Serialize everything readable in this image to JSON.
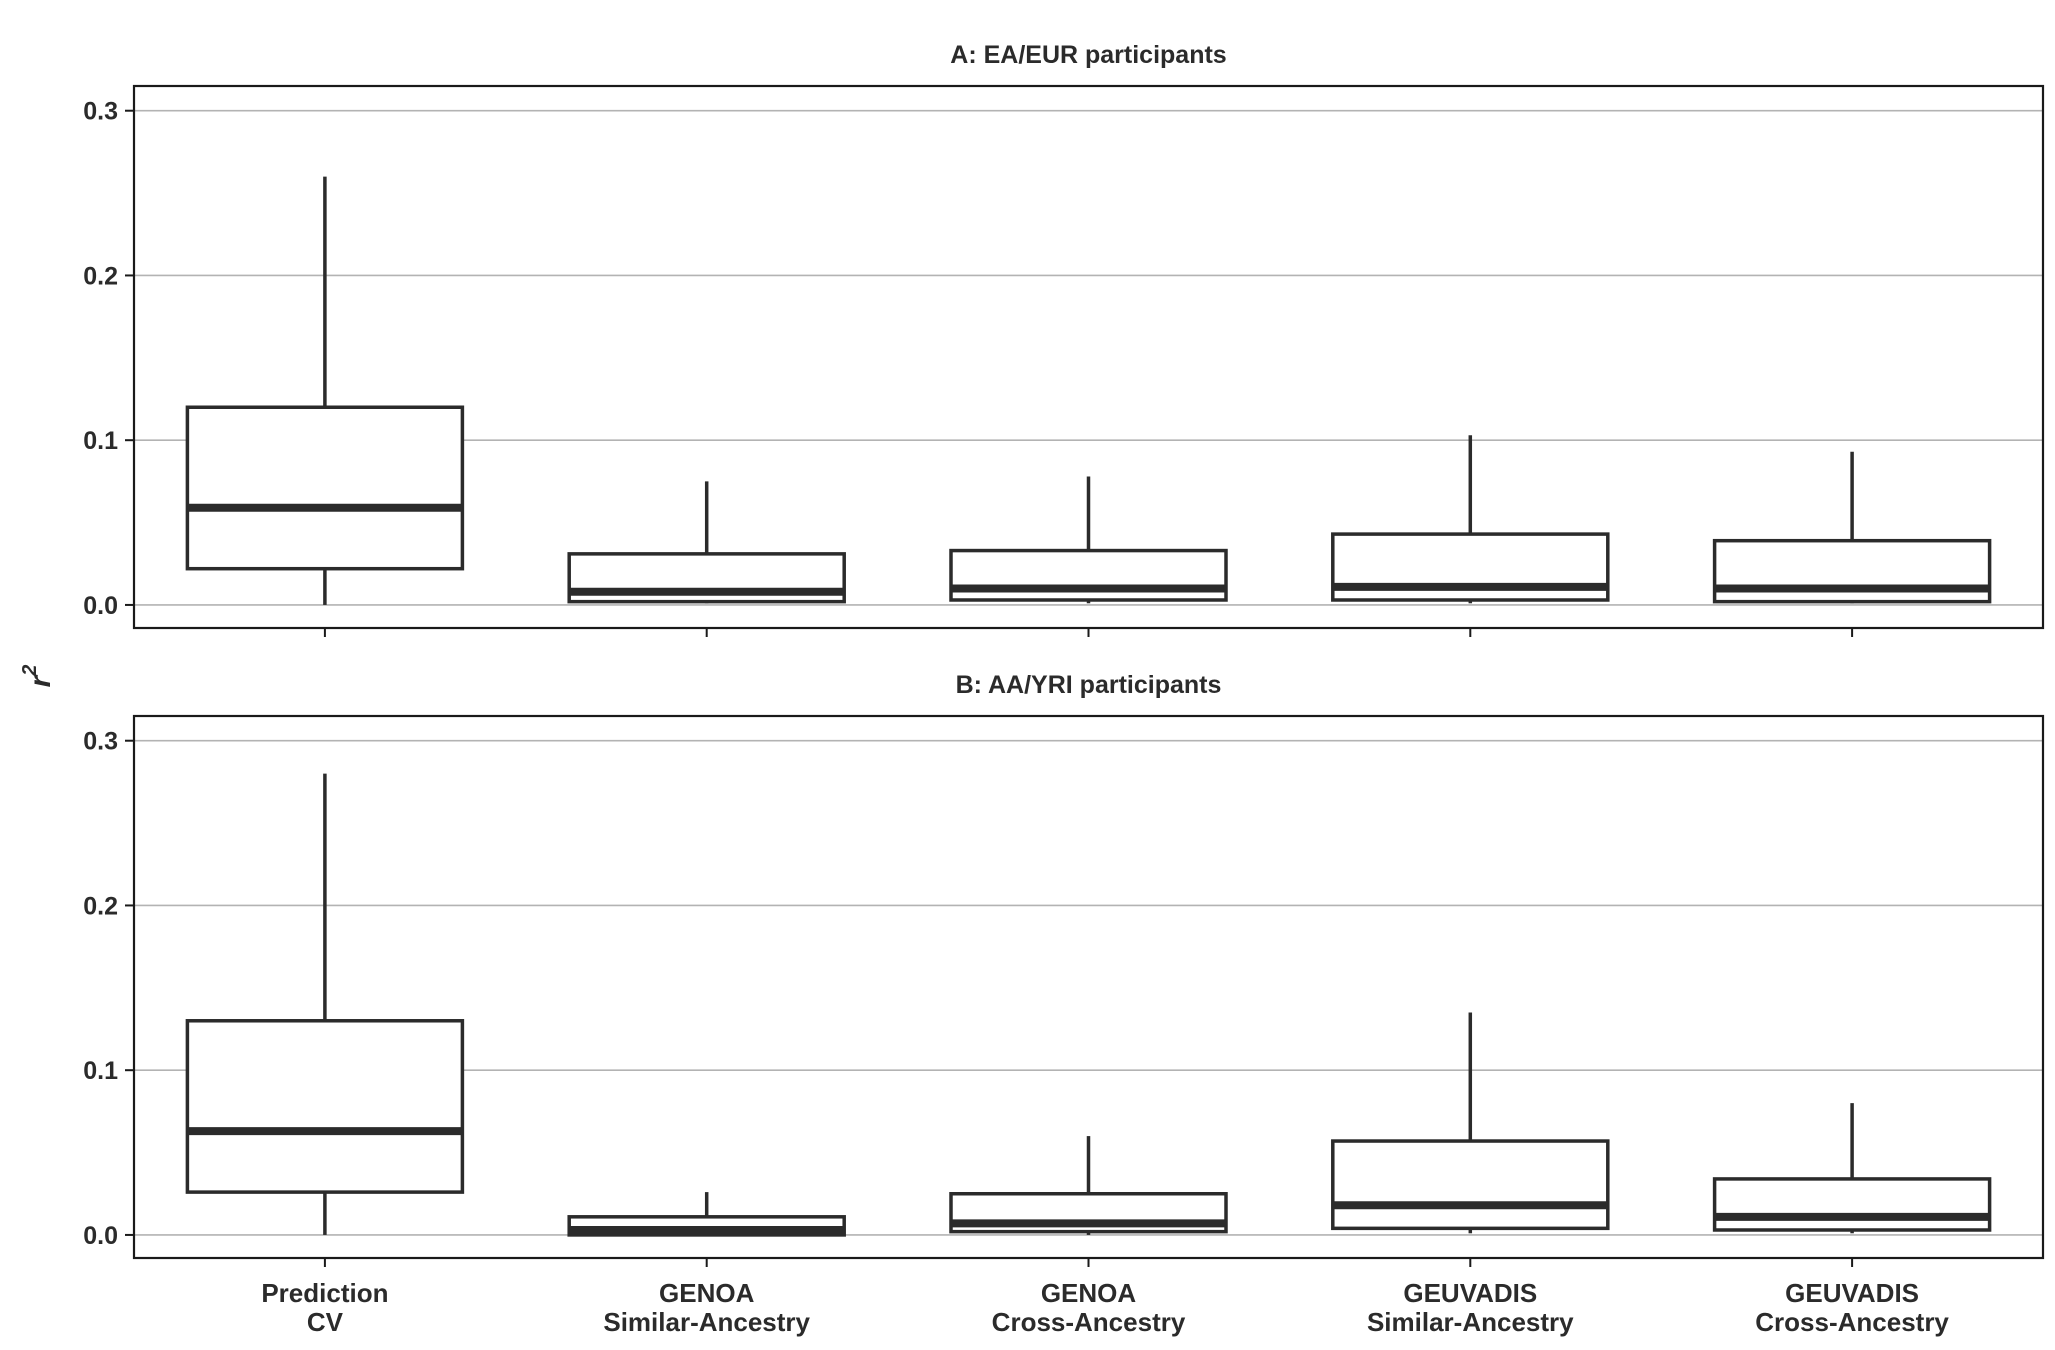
{
  "chart_data": {
    "type": "box",
    "ylabel": "r",
    "ylabel_superscript": "2",
    "ylim": [
      -0.014,
      0.315
    ],
    "yticks": [
      0.0,
      0.1,
      0.2,
      0.3
    ],
    "ytick_labels": [
      "0.0",
      "0.1",
      "0.2",
      "0.3"
    ],
    "grid": "horizontal",
    "categories": [
      {
        "line1": "Prediction",
        "line2": "CV"
      },
      {
        "line1": "GENOA",
        "line2": "Similar-Ancestry"
      },
      {
        "line1": "GENOA",
        "line2": "Cross-Ancestry"
      },
      {
        "line1": "GEUVADIS",
        "line2": "Similar-Ancestry"
      },
      {
        "line1": "GEUVADIS",
        "line2": "Cross-Ancestry"
      }
    ],
    "panels": [
      {
        "title": "A: EA/EUR participants",
        "boxes": [
          {
            "whisker_low": 0.0,
            "q1": 0.022,
            "median": 0.059,
            "q3": 0.12,
            "whisker_high": 0.26
          },
          {
            "whisker_low": 0.001,
            "q1": 0.002,
            "median": 0.008,
            "q3": 0.031,
            "whisker_high": 0.075
          },
          {
            "whisker_low": 0.001,
            "q1": 0.003,
            "median": 0.01,
            "q3": 0.033,
            "whisker_high": 0.078
          },
          {
            "whisker_low": 0.001,
            "q1": 0.003,
            "median": 0.011,
            "q3": 0.043,
            "whisker_high": 0.103
          },
          {
            "whisker_low": 0.001,
            "q1": 0.002,
            "median": 0.01,
            "q3": 0.039,
            "whisker_high": 0.093
          }
        ]
      },
      {
        "title": "B: AA/YRI participants",
        "boxes": [
          {
            "whisker_low": 0.0,
            "q1": 0.026,
            "median": 0.063,
            "q3": 0.13,
            "whisker_high": 0.28
          },
          {
            "whisker_low": 0.0,
            "q1": 0.0,
            "median": 0.003,
            "q3": 0.011,
            "whisker_high": 0.026
          },
          {
            "whisker_low": 0.0,
            "q1": 0.002,
            "median": 0.007,
            "q3": 0.025,
            "whisker_high": 0.06
          },
          {
            "whisker_low": 0.001,
            "q1": 0.004,
            "median": 0.018,
            "q3": 0.057,
            "whisker_high": 0.135
          },
          {
            "whisker_low": 0.001,
            "q1": 0.003,
            "median": 0.011,
            "q3": 0.034,
            "whisker_high": 0.08
          }
        ]
      }
    ]
  },
  "colors": {
    "box_stroke": "#2b2b2b",
    "box_fill": "#ffffff",
    "grid": "#b3b3b3",
    "panel_border": "#1a1a1a",
    "text": "#2b2b2b"
  }
}
